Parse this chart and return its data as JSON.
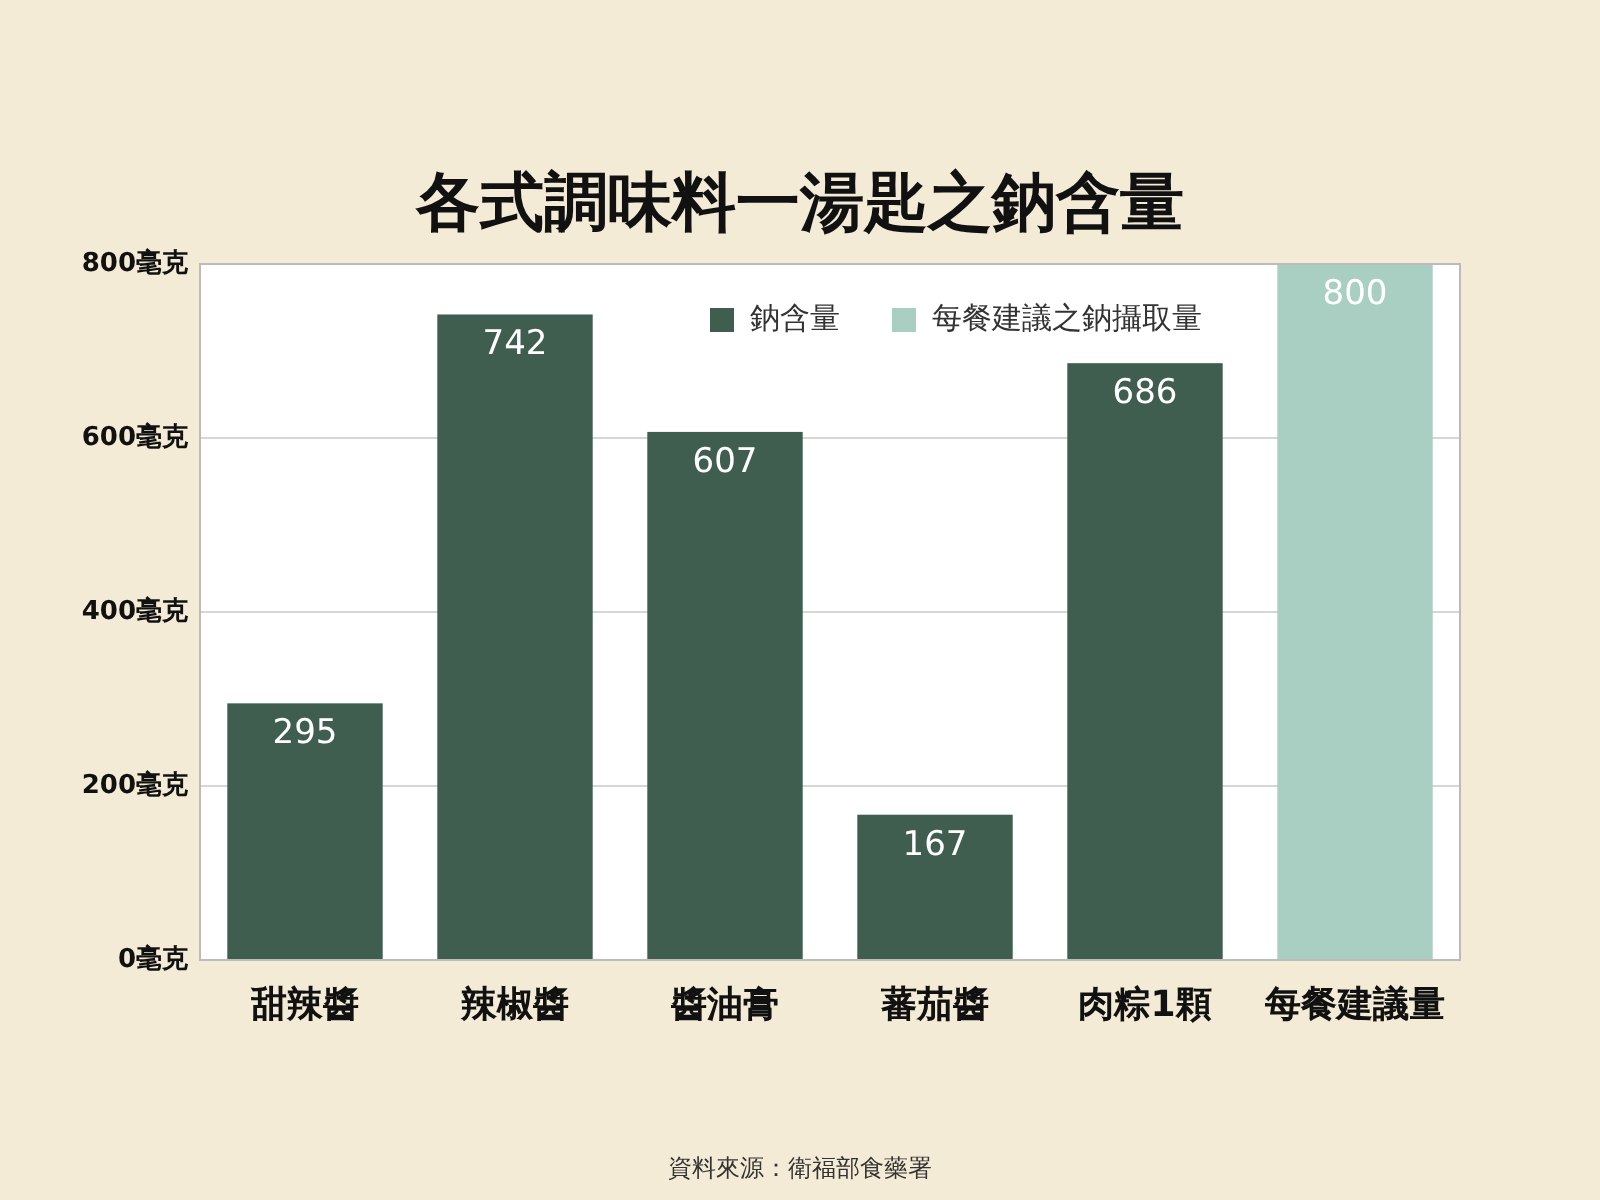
{
  "chart_data": {
    "type": "bar",
    "title": "各式調味料一湯匙之鈉含量",
    "categories": [
      "甜辣醬",
      "辣椒醬",
      "醬油膏",
      "蕃茄醬",
      "肉粽1顆",
      "每餐建議量"
    ],
    "series": [
      {
        "name": "鈉含量",
        "color": "#3f5e50",
        "values": [
          295,
          742,
          607,
          167,
          686,
          null
        ]
      },
      {
        "name": "每餐建議之鈉攝取量",
        "color": "#a8cfc1",
        "values": [
          null,
          null,
          null,
          null,
          null,
          800
        ]
      }
    ],
    "data_labels": true,
    "ylim": [
      0,
      800
    ],
    "yticks": [
      {
        "value": 0,
        "label": "0毫克"
      },
      {
        "value": 200,
        "label": "200毫克"
      },
      {
        "value": 400,
        "label": "400毫克"
      },
      {
        "value": 600,
        "label": "600毫克"
      },
      {
        "value": 800,
        "label": "800毫克"
      }
    ],
    "grid": "y",
    "legend": "top right",
    "annotations": [
      "資料來源：衛福部食藥署"
    ]
  }
}
